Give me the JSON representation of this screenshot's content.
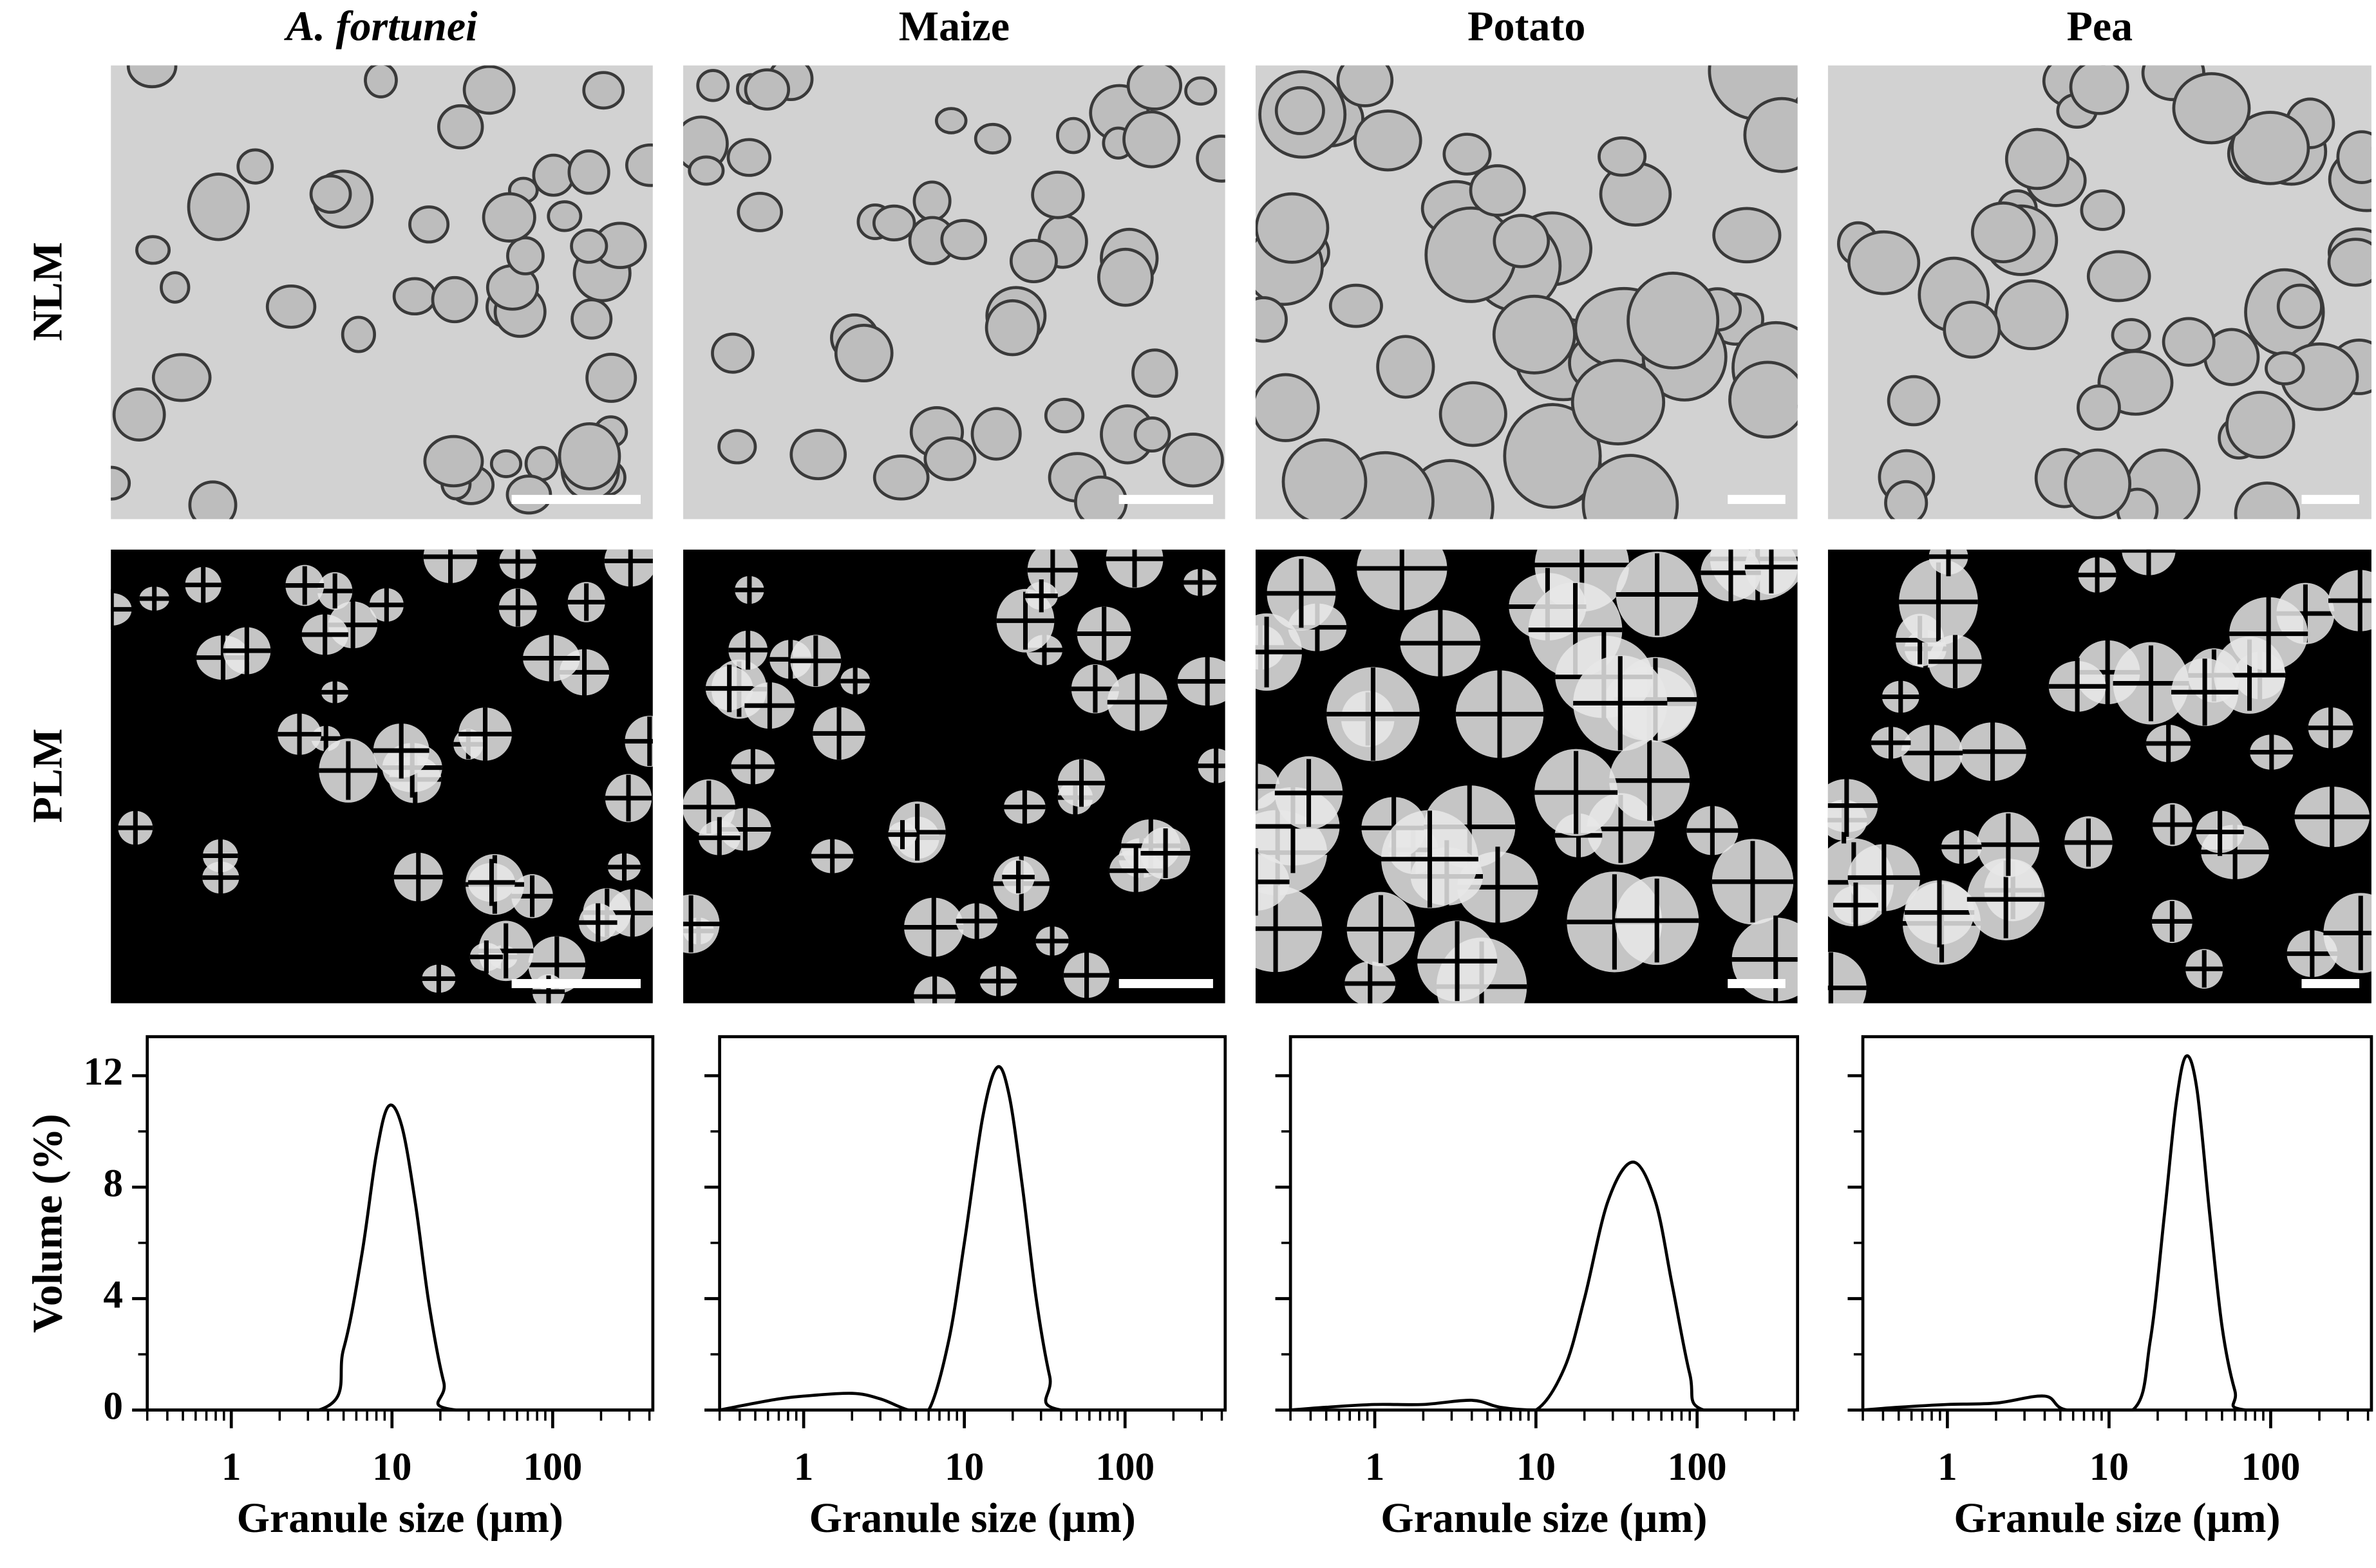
{
  "row_labels": [
    "NLM",
    "PLM"
  ],
  "chart_data": [
    {
      "type": "line",
      "title": "A. fortunei",
      "xlabel": "Granule size (µm)",
      "ylabel": "Volume (%)",
      "log_x": true,
      "grid": false,
      "color": "#000000",
      "x": [
        0.3,
        3.5,
        5,
        6.5,
        8,
        9.5,
        11.5,
        14,
        17,
        21,
        25,
        420
      ],
      "values": [
        0,
        0,
        2.2,
        5.6,
        9.2,
        10.9,
        10.2,
        7.4,
        3.8,
        1.0,
        0,
        0
      ],
      "xlim": [
        0.3,
        420
      ],
      "xticks": [
        1,
        10,
        100
      ],
      "xminorticks": [
        0.3,
        0.4,
        0.5,
        0.6,
        0.7,
        0.8,
        0.9,
        2,
        3,
        4,
        5,
        6,
        7,
        8,
        9,
        20,
        30,
        40,
        50,
        60,
        70,
        80,
        90,
        200,
        300,
        400
      ],
      "ylim": [
        0,
        13.4
      ],
      "yticks": [
        0,
        4,
        8,
        12
      ],
      "yminorticks": [
        2,
        6,
        10
      ]
    },
    {
      "type": "line",
      "title": "Maize",
      "xlabel": "Granule size (µm)",
      "log_x": true,
      "grid": false,
      "color": "#000000",
      "x": [
        0.3,
        0.45,
        0.7,
        1,
        2,
        3,
        4.5,
        6,
        8,
        10,
        13,
        16,
        19,
        23,
        28,
        34,
        40,
        420
      ],
      "values": [
        0,
        0.2,
        0.4,
        0.5,
        0.6,
        0.4,
        0,
        0,
        2.5,
        6,
        10.5,
        12.3,
        11.3,
        8,
        4,
        1.2,
        0,
        0
      ],
      "xlim": [
        0.3,
        420
      ],
      "xticks": [
        1,
        10,
        100
      ],
      "xminorticks": [
        0.3,
        0.4,
        0.5,
        0.6,
        0.7,
        0.8,
        0.9,
        2,
        3,
        4,
        5,
        6,
        7,
        8,
        9,
        20,
        30,
        40,
        50,
        60,
        70,
        80,
        90,
        200,
        300,
        400
      ],
      "ylim": [
        0,
        13.4
      ],
      "yticks": [
        0,
        4,
        8,
        12
      ],
      "yminorticks": [
        2,
        6,
        10
      ]
    },
    {
      "type": "line",
      "title": "Potato",
      "xlabel": "Granule size (µm)",
      "log_x": true,
      "grid": false,
      "color": "#000000",
      "x": [
        0.3,
        0.5,
        1,
        2,
        4,
        6,
        10,
        15,
        20,
        28,
        40,
        55,
        70,
        90,
        110,
        420
      ],
      "values": [
        0,
        0.1,
        0.2,
        0.2,
        0.35,
        0.1,
        0,
        1.5,
        4,
        7.5,
        8.9,
        7.5,
        4.5,
        1.3,
        0,
        0
      ],
      "xlim": [
        0.3,
        420
      ],
      "xticks": [
        1,
        10,
        100
      ],
      "xminorticks": [
        0.3,
        0.4,
        0.5,
        0.6,
        0.7,
        0.8,
        0.9,
        2,
        3,
        4,
        5,
        6,
        7,
        8,
        9,
        20,
        30,
        40,
        50,
        60,
        70,
        80,
        90,
        200,
        300,
        400
      ],
      "ylim": [
        0,
        13.4
      ],
      "yticks": [
        0,
        4,
        8,
        12
      ],
      "yminorticks": [
        2,
        6,
        10
      ]
    },
    {
      "type": "line",
      "title": "Pea",
      "xlabel": "Granule size (µm)",
      "log_x": true,
      "grid": false,
      "color": "#000000",
      "x": [
        0.3,
        0.5,
        1,
        2,
        4,
        5.5,
        14,
        18,
        22,
        26,
        30,
        35,
        42,
        50,
        60,
        70,
        420
      ],
      "values": [
        0,
        0.1,
        0.2,
        0.25,
        0.5,
        0,
        0,
        2.5,
        7,
        11,
        12.7,
        11.5,
        7,
        3,
        0.7,
        0,
        0
      ],
      "xlim": [
        0.3,
        420
      ],
      "xticks": [
        1,
        10,
        100
      ],
      "xminorticks": [
        0.3,
        0.4,
        0.5,
        0.6,
        0.7,
        0.8,
        0.9,
        2,
        3,
        4,
        5,
        6,
        7,
        8,
        9,
        20,
        30,
        40,
        50,
        60,
        70,
        80,
        90,
        200,
        300,
        400
      ],
      "ylim": [
        0,
        13.4
      ],
      "yticks": [
        0,
        4,
        8,
        12
      ],
      "yminorticks": [
        2,
        6,
        10
      ]
    }
  ]
}
